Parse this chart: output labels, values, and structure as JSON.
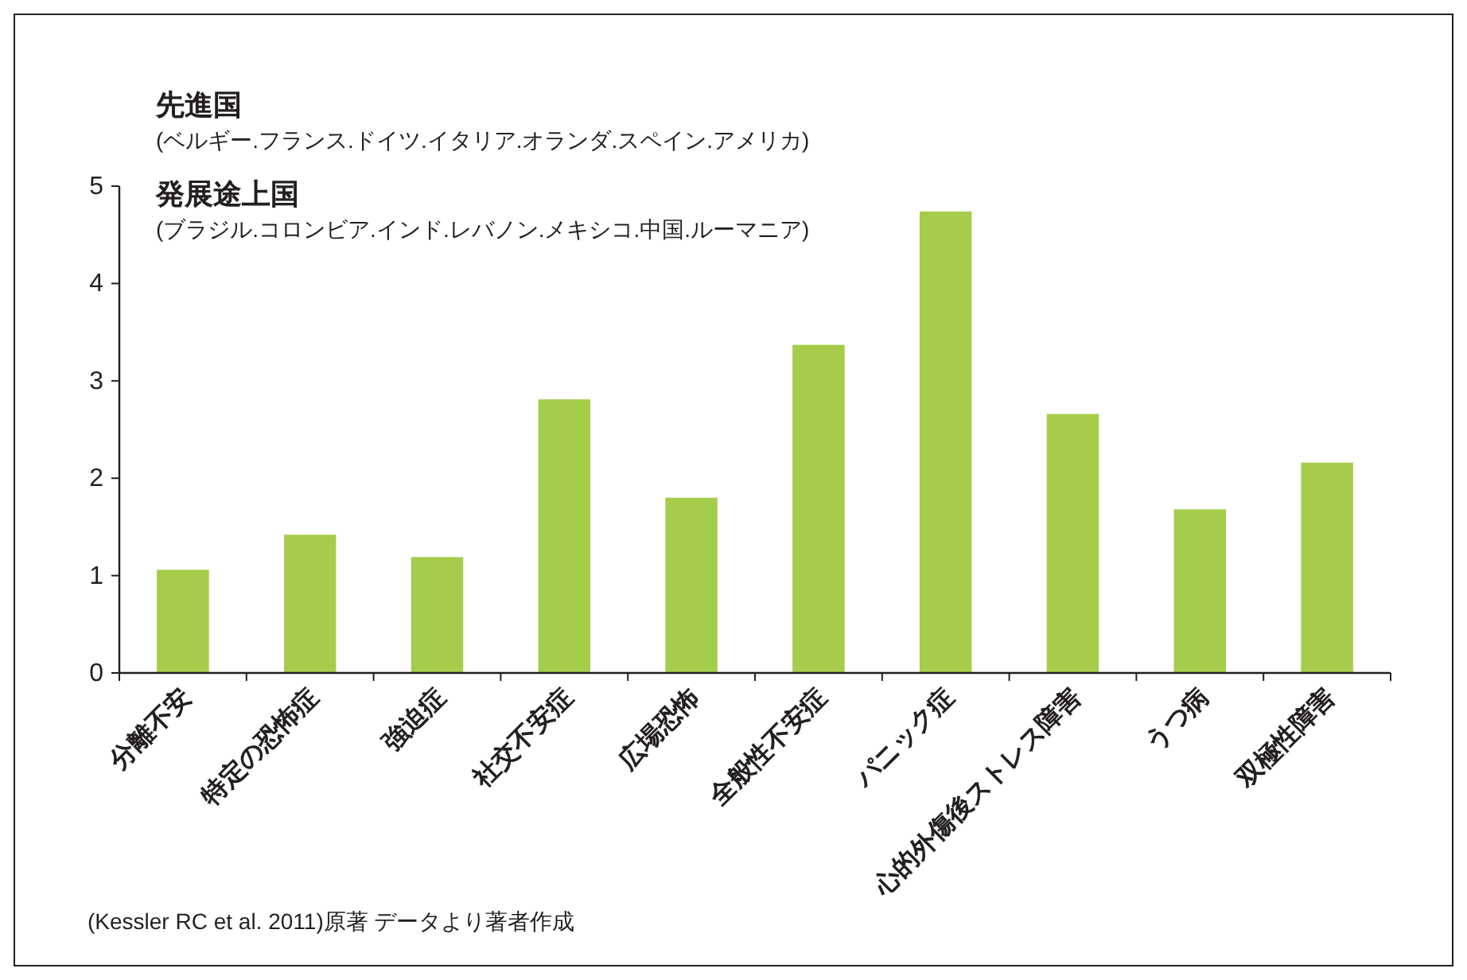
{
  "chart_data": {
    "type": "bar",
    "categories": [
      "分離不安",
      "特定の恐怖症",
      "強迫症",
      "社交不安症",
      "広場恐怖",
      "全般性不安症",
      "パニック症",
      "心的外傷後ストレス障害",
      "うつ病",
      "双極性障害"
    ],
    "values": [
      1.06,
      1.42,
      1.19,
      2.81,
      1.8,
      3.37,
      4.74,
      2.66,
      1.68,
      2.16
    ],
    "color": "#a5cd4b",
    "ylim": [
      0,
      5
    ],
    "yticks": [
      0,
      1,
      2,
      3,
      4,
      5
    ],
    "grid": false,
    "annotations": [
      "先進国",
      "(ベルギー.フランス.ドイツ.イタリア.オランダ.スペイン.アメリカ)",
      "発展途上国",
      "(ブラジル.コロンビア.インド.レバノン.メキシコ.中国.ルーマニア)",
      "(Kessler RC et al. 2011)原著 データより著者作成"
    ]
  }
}
